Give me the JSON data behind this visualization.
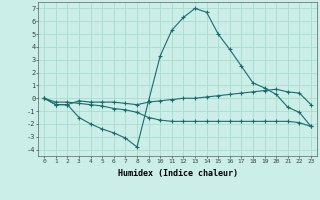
{
  "xlabel": "Humidex (Indice chaleur)",
  "background_color": "#cceee8",
  "grid_color": "#aaddcc",
  "line_color": "#1a6b6b",
  "xlim": [
    -0.5,
    23.5
  ],
  "ylim": [
    -4.5,
    7.5
  ],
  "xticks": [
    0,
    1,
    2,
    3,
    4,
    5,
    6,
    7,
    8,
    9,
    10,
    11,
    12,
    13,
    14,
    15,
    16,
    17,
    18,
    19,
    20,
    21,
    22,
    23
  ],
  "yticks": [
    -4,
    -3,
    -2,
    -1,
    0,
    1,
    2,
    3,
    4,
    5,
    6,
    7
  ],
  "line1_x": [
    0,
    1,
    2,
    3,
    4,
    5,
    6,
    7,
    8,
    9,
    10,
    11,
    12,
    13,
    14,
    15,
    16,
    17,
    18,
    19,
    20,
    21,
    22,
    23
  ],
  "line1_y": [
    0,
    -0.5,
    -0.5,
    -1.5,
    -2.0,
    -2.4,
    -2.7,
    -3.1,
    -3.8,
    -0.2,
    3.3,
    5.3,
    6.3,
    7.0,
    6.7,
    5.0,
    3.8,
    2.5,
    1.2,
    0.8,
    0.3,
    -0.7,
    -1.1,
    -2.2
  ],
  "line2_x": [
    0,
    1,
    2,
    3,
    4,
    5,
    6,
    7,
    8,
    9,
    10,
    11,
    12,
    13,
    14,
    15,
    16,
    17,
    18,
    19,
    20,
    21,
    22,
    23
  ],
  "line2_y": [
    0,
    -0.3,
    -0.3,
    -0.4,
    -0.5,
    -0.6,
    -0.8,
    -0.9,
    -1.1,
    -1.5,
    -1.7,
    -1.8,
    -1.8,
    -1.8,
    -1.8,
    -1.8,
    -1.8,
    -1.8,
    -1.8,
    -1.8,
    -1.8,
    -1.8,
    -1.9,
    -2.2
  ],
  "line3_x": [
    0,
    1,
    2,
    3,
    4,
    5,
    6,
    7,
    8,
    9,
    10,
    11,
    12,
    13,
    14,
    15,
    16,
    17,
    18,
    19,
    20,
    21,
    22,
    23
  ],
  "line3_y": [
    0,
    -0.5,
    -0.5,
    -0.2,
    -0.3,
    -0.3,
    -0.3,
    -0.4,
    -0.5,
    -0.3,
    -0.2,
    -0.1,
    0.0,
    0.0,
    0.1,
    0.2,
    0.3,
    0.4,
    0.5,
    0.6,
    0.7,
    0.5,
    0.4,
    -0.5
  ]
}
